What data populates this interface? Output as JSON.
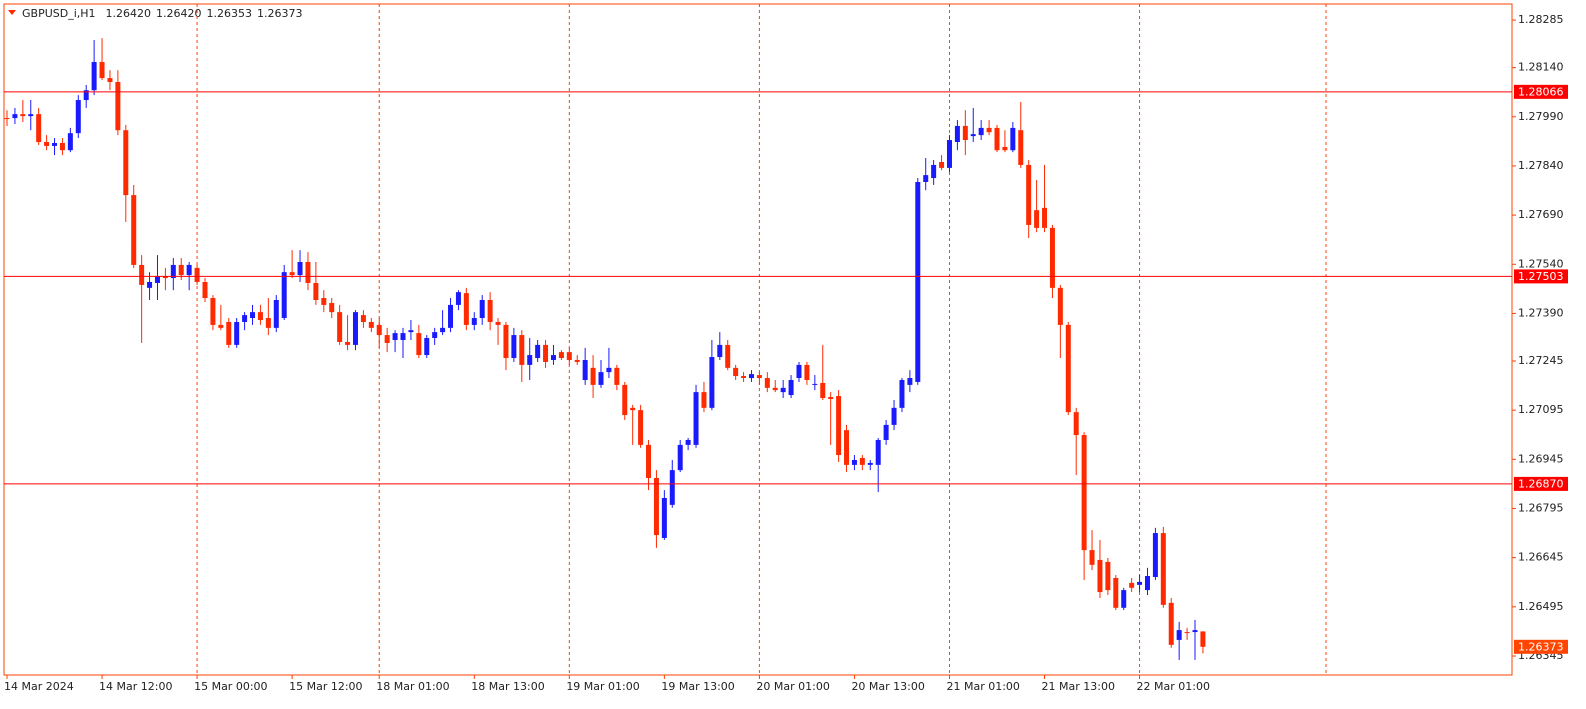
{
  "chart_data": {
    "type": "candlestick",
    "title": "GBPUSD_i,H1",
    "title_ohlc": [
      "1.26420",
      "1.26420",
      "1.26353",
      "1.26373"
    ],
    "up_color": "#1a1aff",
    "down_color": "#ff2a00",
    "period_separators": true,
    "ylim": [
      1.26287,
      1.28334
    ],
    "yticks": [
      1.28285,
      {
        "value": 1.2814,
        "label": "1.28140"
      },
      {
        "value": 1.2799,
        "label": "1.27990"
      },
      {
        "value": 1.2784,
        "label": "1.27840"
      },
      {
        "value": 1.2769,
        "label": "1.27690"
      },
      {
        "value": 1.2754,
        "label": "1.27540"
      },
      {
        "value": 1.2739,
        "label": "1.27390"
      },
      1.27245,
      1.27095,
      1.26945,
      1.26795,
      1.26645,
      1.26495,
      1.26345
    ],
    "levels": [
      1.28066,
      1.27503,
      {
        "value": 1.2687,
        "label": "1.26870"
      }
    ],
    "last_price": 1.26373,
    "categories": [
      "14 Mar 2024",
      null,
      null,
      null,
      null,
      null,
      null,
      null,
      null,
      null,
      null,
      null,
      "14 Mar 12:00",
      null,
      null,
      null,
      null,
      null,
      null,
      null,
      null,
      null,
      null,
      null,
      "15 Mar 00:00",
      null,
      null,
      null,
      null,
      null,
      null,
      null,
      null,
      null,
      null,
      null,
      "15 Mar 12:00",
      null,
      null,
      null,
      null,
      null,
      null,
      null,
      null,
      null,
      null,
      "18 Mar 01:00",
      null,
      null,
      null,
      null,
      null,
      null,
      null,
      null,
      null,
      null,
      null,
      "18 Mar 13:00",
      null,
      null,
      null,
      null,
      null,
      null,
      null,
      null,
      null,
      null,
      null,
      "19 Mar 01:00",
      null,
      null,
      null,
      null,
      null,
      null,
      null,
      null,
      null,
      null,
      null,
      "19 Mar 13:00",
      null,
      null,
      null,
      null,
      null,
      null,
      null,
      null,
      null,
      null,
      null,
      "20 Mar 01:00",
      null,
      null,
      null,
      null,
      null,
      null,
      null,
      null,
      null,
      null,
      null,
      "20 Mar 13:00",
      null,
      null,
      null,
      null,
      null,
      null,
      null,
      null,
      null,
      null,
      null,
      "21 Mar 01:00",
      null,
      null,
      null,
      null,
      null,
      null,
      null,
      null,
      null,
      null,
      null,
      "21 Mar 13:00",
      null,
      null,
      null,
      null,
      null,
      null,
      null,
      null,
      null,
      null,
      null,
      "22 Mar 01:00",
      null,
      null,
      null,
      null,
      null,
      null,
      null,
      null
    ],
    "ohlc": [
      [
        1.27986,
        1.2801,
        1.27962,
        1.27983
      ],
      [
        1.27986,
        1.28017,
        1.27968,
        1.27998
      ],
      [
        1.27998,
        1.28041,
        1.27974,
        1.27992
      ],
      [
        1.27992,
        1.28041,
        1.27949,
        1.27998
      ],
      [
        1.27998,
        1.28017,
        1.27904,
        1.27913
      ],
      [
        1.27913,
        1.27934,
        1.27888,
        1.27901
      ],
      [
        1.27901,
        1.27925,
        1.27873,
        1.2791
      ],
      [
        1.2791,
        1.27925,
        1.27873,
        1.27888
      ],
      [
        1.27888,
        1.27956,
        1.27882,
        1.2794
      ],
      [
        1.2794,
        1.28056,
        1.27925,
        1.28041
      ],
      [
        1.28041,
        1.28087,
        1.28017,
        1.28071
      ],
      [
        1.28071,
        1.28224,
        1.28056,
        1.28157
      ],
      [
        1.28157,
        1.2823,
        1.28102,
        1.28108
      ],
      [
        1.28108,
        1.28132,
        1.28071,
        1.28096
      ],
      [
        1.28096,
        1.28132,
        1.27934,
        1.27949
      ],
      [
        1.27949,
        1.27965,
        1.27669,
        1.27751
      ],
      [
        1.27751,
        1.27782,
        1.27529,
        1.27538
      ],
      [
        1.27538,
        1.27568,
        1.273,
        1.27477
      ],
      [
        1.27468,
        1.27516,
        1.27431,
        1.27486
      ],
      [
        1.27483,
        1.27568,
        1.27431,
        1.27504
      ],
      [
        1.27504,
        1.27529,
        1.27461,
        1.27498
      ],
      [
        1.27498,
        1.27559,
        1.27461,
        1.27538
      ],
      [
        1.27538,
        1.27559,
        1.27492,
        1.27507
      ],
      [
        1.27507,
        1.27547,
        1.27461,
        1.27538
      ],
      [
        1.27529,
        1.27538,
        1.27477,
        1.27486
      ],
      [
        1.27486,
        1.27498,
        1.27425,
        1.27437
      ],
      [
        1.27437,
        1.27446,
        1.27339,
        1.27355
      ],
      [
        1.27355,
        1.27416,
        1.27339,
        1.27346
      ],
      [
        1.27364,
        1.27376,
        1.27285,
        1.27294
      ],
      [
        1.27294,
        1.27376,
        1.27285,
        1.27364
      ],
      [
        1.27364,
        1.27394,
        1.27339,
        1.27385
      ],
      [
        1.27376,
        1.27416,
        1.27355,
        1.27394
      ],
      [
        1.27394,
        1.27416,
        1.27355,
        1.2737
      ],
      [
        1.27376,
        1.27437,
        1.27324,
        1.27346
      ],
      [
        1.27346,
        1.27446,
        1.27333,
        1.27431
      ],
      [
        1.27376,
        1.27538,
        1.2737,
        1.27516
      ],
      [
        1.27516,
        1.27583,
        1.27498,
        1.27507
      ],
      [
        1.27507,
        1.27583,
        1.27486,
        1.27547
      ],
      [
        1.27547,
        1.27577,
        1.27461,
        1.27483
      ],
      [
        1.27483,
        1.27547,
        1.27416,
        1.27431
      ],
      [
        1.27437,
        1.27461,
        1.27394,
        1.27416
      ],
      [
        1.27422,
        1.27437,
        1.27376,
        1.27394
      ],
      [
        1.27394,
        1.27416,
        1.27294,
        1.27303
      ],
      [
        1.27303,
        1.27385,
        1.27278,
        1.27294
      ],
      [
        1.27294,
        1.274,
        1.27278,
        1.27394
      ],
      [
        1.27385,
        1.274,
        1.27346,
        1.27364
      ],
      [
        1.27364,
        1.27376,
        1.27333,
        1.27346
      ],
      [
        1.27355,
        1.27376,
        1.27285,
        1.27324
      ],
      [
        1.27324,
        1.27346,
        1.27272,
        1.273
      ],
      [
        1.27309,
        1.27339,
        1.27272,
        1.2733
      ],
      [
        1.27309,
        1.27346,
        1.27254,
        1.2733
      ],
      [
        1.27333,
        1.2737,
        1.27309,
        1.27339
      ],
      [
        1.2733,
        1.27355,
        1.27254,
        1.27263
      ],
      [
        1.27263,
        1.27324,
        1.27254,
        1.27315
      ],
      [
        1.27315,
        1.27346,
        1.27294,
        1.27333
      ],
      [
        1.27333,
        1.274,
        1.27324,
        1.27346
      ],
      [
        1.27346,
        1.27437,
        1.27333,
        1.27416
      ],
      [
        1.27416,
        1.27461,
        1.274,
        1.27455
      ],
      [
        1.27452,
        1.27468,
        1.27339,
        1.27355
      ],
      [
        1.27355,
        1.27394,
        1.27339,
        1.27376
      ],
      [
        1.27376,
        1.27446,
        1.27355,
        1.27431
      ],
      [
        1.27431,
        1.27455,
        1.27339,
        1.27364
      ],
      [
        1.27364,
        1.27376,
        1.27294,
        1.27355
      ],
      [
        1.27355,
        1.27364,
        1.27217,
        1.27254
      ],
      [
        1.27254,
        1.27346,
        1.27242,
        1.27324
      ],
      [
        1.27324,
        1.27339,
        1.27181,
        1.27233
      ],
      [
        1.27233,
        1.27315,
        1.27187,
        1.27263
      ],
      [
        1.27254,
        1.27309,
        1.27242,
        1.27294
      ],
      [
        1.27294,
        1.27309,
        1.27224,
        1.27242
      ],
      [
        1.27248,
        1.27294,
        1.27233,
        1.27263
      ],
      [
        1.27272,
        1.27278,
        1.27248,
        1.27254
      ],
      [
        1.27272,
        1.27285,
        1.27233,
        1.27248
      ],
      [
        1.27248,
        1.27263,
        1.27233,
        1.27242
      ],
      [
        1.27187,
        1.27285,
        1.27172,
        1.27248
      ],
      [
        1.27224,
        1.27263,
        1.27132,
        1.27172
      ],
      [
        1.27172,
        1.27248,
        1.27163,
        1.27211
      ],
      [
        1.27211,
        1.27285,
        1.27193,
        1.27224
      ],
      [
        1.27224,
        1.27233,
        1.27156,
        1.27172
      ],
      [
        1.27172,
        1.27181,
        1.27065,
        1.2708
      ],
      [
        1.27102,
        1.27111,
        1.26989,
        1.27095
      ],
      [
        1.27095,
        1.27111,
        1.2698,
        1.26989
      ],
      [
        1.26989,
        1.27004,
        1.26851,
        1.26888
      ],
      [
        1.26888,
        1.26912,
        1.26675,
        1.26714
      ],
      [
        1.26705,
        1.26851,
        1.26699,
        1.26827
      ],
      [
        1.26806,
        1.26943,
        1.26797,
        1.26912
      ],
      [
        1.26912,
        1.27004,
        1.26906,
        1.26989
      ],
      [
        1.26989,
        1.2701,
        1.26973,
        1.27004
      ],
      [
        1.26989,
        1.27172,
        1.2698,
        1.2715
      ],
      [
        1.2715,
        1.27181,
        1.27089,
        1.27102
      ],
      [
        1.27102,
        1.27309,
        1.27095,
        1.27257
      ],
      [
        1.27257,
        1.27333,
        1.27248,
        1.27294
      ],
      [
        1.27294,
        1.27309,
        1.27217,
        1.27224
      ],
      [
        1.27224,
        1.27233,
        1.27187,
        1.27199
      ],
      [
        1.27199,
        1.27211,
        1.27181,
        1.27193
      ],
      [
        1.27193,
        1.27217,
        1.27181,
        1.27205
      ],
      [
        1.27202,
        1.27211,
        1.27172,
        1.27193
      ],
      [
        1.27193,
        1.27211,
        1.2715,
        1.27163
      ],
      [
        1.27163,
        1.27187,
        1.2715,
        1.27156
      ],
      [
        1.2715,
        1.27187,
        1.27132,
        1.27163
      ],
      [
        1.27141,
        1.27202,
        1.27132,
        1.27187
      ],
      [
        1.27193,
        1.27242,
        1.27181,
        1.27233
      ],
      [
        1.27233,
        1.27242,
        1.27172,
        1.27187
      ],
      [
        1.27172,
        1.27202,
        1.27156,
        1.27175
      ],
      [
        1.27178,
        1.27294,
        1.27126,
        1.27132
      ],
      [
        1.27135,
        1.2715,
        1.26989,
        1.27129
      ],
      [
        1.27138,
        1.27156,
        1.26937,
        1.26958
      ],
      [
        1.27034,
        1.2705,
        1.26906,
        1.26928
      ],
      [
        1.26928,
        1.26958,
        1.26912,
        1.26943
      ],
      [
        1.26949,
        1.26958,
        1.26912,
        1.26928
      ],
      [
        1.26928,
        1.26943,
        1.26912,
        1.26934
      ],
      [
        1.26928,
        1.2701,
        1.26845,
        1.27004
      ],
      [
        1.27004,
        1.27065,
        1.26989,
        1.2705
      ],
      [
        1.2705,
        1.27126,
        1.27034,
        1.27102
      ],
      [
        1.27102,
        1.27193,
        1.27089,
        1.27187
      ],
      [
        1.27172,
        1.27217,
        1.2715,
        1.27193
      ],
      [
        1.27181,
        1.27803,
        1.27172,
        1.27791
      ],
      [
        1.27791,
        1.27864,
        1.27766,
        1.27812
      ],
      [
        1.27803,
        1.27858,
        1.27782,
        1.27843
      ],
      [
        1.27852,
        1.27873,
        1.27827,
        1.27834
      ],
      [
        1.27834,
        1.27934,
        1.27821,
        1.27919
      ],
      [
        1.27913,
        1.2798,
        1.27888,
        1.27962
      ],
      [
        1.27962,
        1.2801,
        1.27873,
        1.27919
      ],
      [
        1.27931,
        1.28017,
        1.27913,
        1.27937
      ],
      [
        1.27934,
        1.2798,
        1.27919,
        1.27956
      ],
      [
        1.27956,
        1.2798,
        1.27934,
        1.27943
      ],
      [
        1.27956,
        1.27965,
        1.27882,
        1.27888
      ],
      [
        1.27898,
        1.27949,
        1.27882,
        1.27888
      ],
      [
        1.27888,
        1.27974,
        1.27882,
        1.27956
      ],
      [
        1.27949,
        1.28035,
        1.27834,
        1.27843
      ],
      [
        1.27843,
        1.27858,
        1.2762,
        1.2766
      ],
      [
        1.27705,
        1.27797,
        1.27638,
        1.27651
      ],
      [
        1.27712,
        1.27843,
        1.27638,
        1.27651
      ],
      [
        1.27651,
        1.2766,
        1.27437,
        1.27468
      ],
      [
        1.27468,
        1.27477,
        1.27254,
        1.27355
      ],
      [
        1.27355,
        1.27364,
        1.2708,
        1.27089
      ],
      [
        1.27089,
        1.27102,
        1.26897,
        1.27019
      ],
      [
        1.27019,
        1.27028,
        1.26577,
        1.26668
      ],
      [
        1.26668,
        1.26729,
        1.26607,
        1.26623
      ],
      [
        1.26638,
        1.26699,
        1.26522,
        1.2654
      ],
      [
        1.26632,
        1.26644,
        1.26531,
        1.26546
      ],
      [
        1.26583,
        1.26592,
        1.26485,
        1.26492
      ],
      [
        1.26492,
        1.26553,
        1.26485,
        1.26546
      ],
      [
        1.26568,
        1.26583,
        1.2654,
        1.26553
      ],
      [
        1.26562,
        1.26592,
        1.2654,
        1.26571
      ],
      [
        1.26546,
        1.26614,
        1.26531,
        1.26589
      ],
      [
        1.26586,
        1.26736,
        1.26577,
        1.2672
      ],
      [
        1.2672,
        1.26739,
        1.26492,
        1.26501
      ],
      [
        1.26507,
        1.26522,
        1.2637,
        1.26379
      ],
      [
        1.26394,
        1.26449,
        1.26333,
        1.26424
      ],
      [
        1.26418,
        1.26431,
        1.26394,
        1.26415
      ],
      [
        1.26418,
        1.26455,
        1.26333,
        1.26424
      ],
      [
        1.2642,
        1.2642,
        1.26353,
        1.26373
      ]
    ]
  }
}
